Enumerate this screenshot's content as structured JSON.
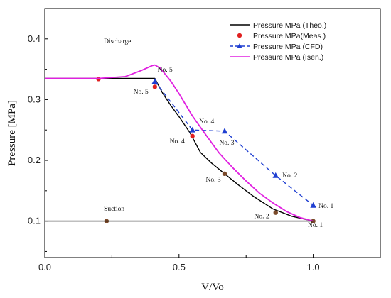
{
  "chart_data": {
    "type": "line",
    "title": "",
    "xlabel": "V/Vo",
    "ylabel": "Pressure [MPa]",
    "xlim": [
      0,
      1.25
    ],
    "ylim": [
      0.04,
      0.45
    ],
    "xticks": [
      0.0,
      0.5,
      1.0
    ],
    "yticks": [
      0.1,
      0.2,
      0.3,
      0.4
    ],
    "grid": false,
    "legend_position": "top-right",
    "series": [
      {
        "name": "Pressure MPa (Theo.)",
        "kind": "line",
        "color": "#000000",
        "dash": "solid",
        "marker": "none",
        "x": [
          0.0,
          0.2,
          0.41,
          0.44,
          0.47,
          0.5,
          0.54,
          0.58,
          0.62,
          0.67,
          0.72,
          0.78,
          0.85,
          0.92,
          1.0
        ],
        "y": [
          0.335,
          0.335,
          0.335,
          0.31,
          0.29,
          0.272,
          0.246,
          0.213,
          0.196,
          0.178,
          0.16,
          0.14,
          0.12,
          0.108,
          0.1
        ]
      },
      {
        "name": "Pressure MPa(Meas.)",
        "kind": "scatter",
        "color": "#e02020",
        "marker": "circle",
        "x": [
          0.2,
          0.41,
          0.55,
          0.67,
          0.86,
          1.0,
          0.23
        ],
        "y": [
          0.334,
          0.321,
          0.24,
          0.178,
          0.114,
          0.1,
          0.1
        ]
      },
      {
        "name": "Pressure MPa (CFD)",
        "kind": "line",
        "color": "#1f3fd1",
        "dash": "dashed",
        "marker": "triangle",
        "x": [
          0.41,
          0.55,
          0.67,
          0.86,
          1.0
        ],
        "y": [
          0.33,
          0.25,
          0.248,
          0.175,
          0.126
        ]
      },
      {
        "name": "Pressure MPa (Isen.)",
        "kind": "line",
        "color": "#e020e0",
        "dash": "solid",
        "marker": "none",
        "x": [
          0.0,
          0.2,
          0.3,
          0.36,
          0.4,
          0.41,
          0.43,
          0.47,
          0.5,
          0.55,
          0.6,
          0.65,
          0.7,
          0.75,
          0.8,
          0.85,
          0.9,
          0.95,
          1.0
        ],
        "y": [
          0.335,
          0.335,
          0.338,
          0.348,
          0.356,
          0.357,
          0.352,
          0.33,
          0.31,
          0.273,
          0.242,
          0.212,
          0.188,
          0.166,
          0.146,
          0.13,
          0.116,
          0.106,
          0.1
        ]
      },
      {
        "name": "",
        "kind": "line",
        "color": "#000000",
        "dash": "solid",
        "marker": "none",
        "x": [
          0.0,
          1.0
        ],
        "y": [
          0.1,
          0.1
        ]
      }
    ],
    "annotations": [
      {
        "text": "Discharge",
        "x": 0.22,
        "y": 0.393
      },
      {
        "text": "Suction",
        "x": 0.22,
        "y": 0.117
      },
      {
        "text": "No. 5",
        "x": 0.42,
        "y": 0.346
      },
      {
        "text": "No. 5",
        "x": 0.33,
        "y": 0.31
      },
      {
        "text": "No. 4",
        "x": 0.575,
        "y": 0.261
      },
      {
        "text": "No. 4",
        "x": 0.465,
        "y": 0.228
      },
      {
        "text": "No. 3",
        "x": 0.65,
        "y": 0.226
      },
      {
        "text": "No. 3",
        "x": 0.6,
        "y": 0.165
      },
      {
        "text": "No. 2",
        "x": 0.885,
        "y": 0.172
      },
      {
        "text": "No. 2",
        "x": 0.78,
        "y": 0.105
      },
      {
        "text": "No. 1",
        "x": 1.02,
        "y": 0.122
      },
      {
        "text": "No. 1",
        "x": 0.98,
        "y": 0.09
      }
    ]
  }
}
